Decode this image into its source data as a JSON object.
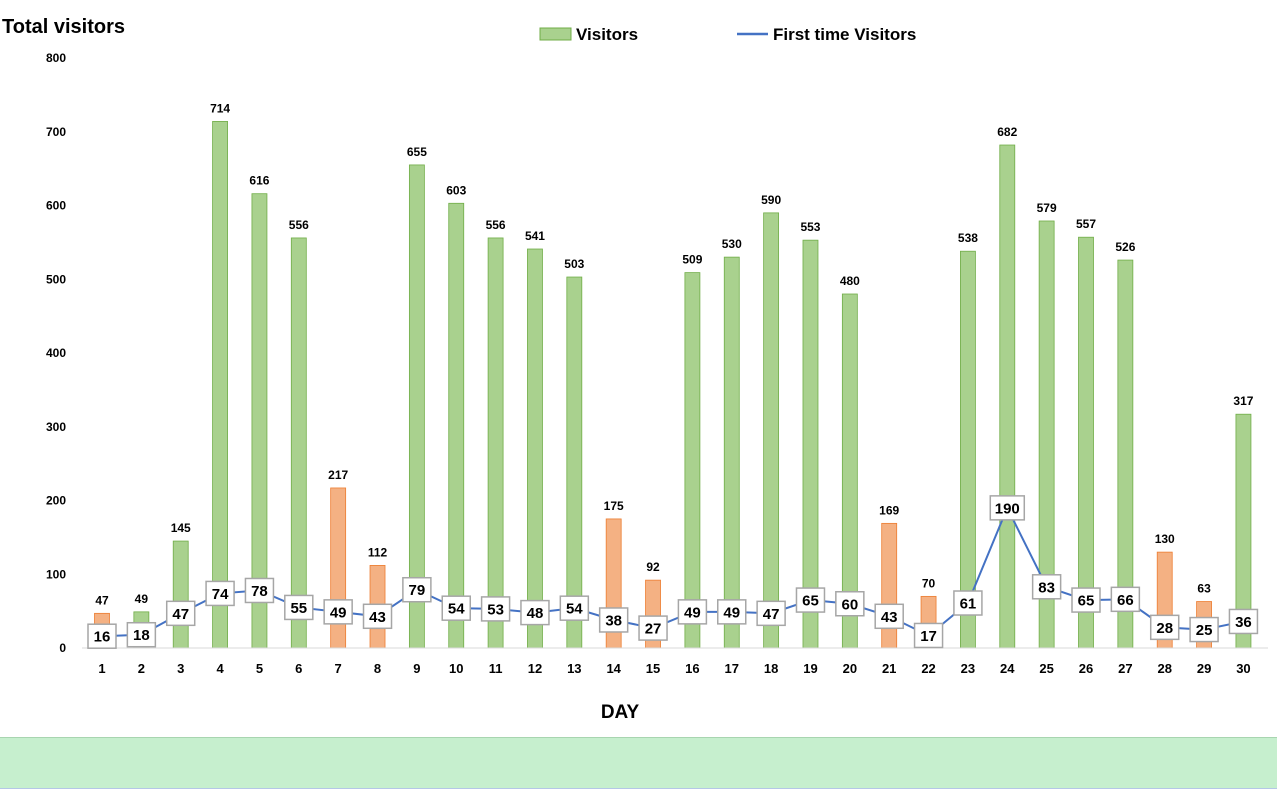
{
  "chart_data": {
    "type": "bar",
    "title": "Total visitors",
    "xlabel": "DAY",
    "ylabel": "",
    "ylim": [
      0,
      800
    ],
    "yticks": [
      0,
      100,
      200,
      300,
      400,
      500,
      600,
      700,
      800
    ],
    "grid": false,
    "legend_position": "top-center",
    "categories": [
      "1",
      "2",
      "3",
      "4",
      "5",
      "6",
      "7",
      "8",
      "9",
      "10",
      "11",
      "12",
      "13",
      "14",
      "15",
      "16",
      "17",
      "18",
      "19",
      "20",
      "21",
      "22",
      "23",
      "24",
      "25",
      "26",
      "27",
      "28",
      "29",
      "30"
    ],
    "series": [
      {
        "name": "Visitors",
        "type": "bar",
        "values": [
          47,
          49,
          145,
          714,
          616,
          556,
          217,
          112,
          655,
          603,
          556,
          541,
          503,
          175,
          92,
          509,
          530,
          590,
          553,
          480,
          169,
          70,
          538,
          682,
          579,
          557,
          526,
          130,
          63,
          317
        ],
        "highlight": [
          true,
          false,
          false,
          false,
          false,
          false,
          true,
          true,
          false,
          false,
          false,
          false,
          false,
          true,
          true,
          false,
          false,
          false,
          false,
          false,
          true,
          true,
          false,
          false,
          false,
          false,
          false,
          true,
          true,
          false
        ]
      },
      {
        "name": "First time Visitors",
        "type": "line",
        "values": [
          16,
          18,
          47,
          74,
          78,
          55,
          49,
          43,
          79,
          54,
          53,
          48,
          54,
          38,
          27,
          49,
          49,
          47,
          65,
          60,
          43,
          17,
          61,
          190,
          83,
          65,
          66,
          28,
          25,
          36
        ]
      }
    ],
    "colors": {
      "bar": "#a9d18e",
      "bar_border": "#70ad47",
      "bar_highlight": "#f4b183",
      "bar_highlight_border": "#ed7d31",
      "line": "#4472c4",
      "label_box_border": "#a6a6a6"
    }
  }
}
